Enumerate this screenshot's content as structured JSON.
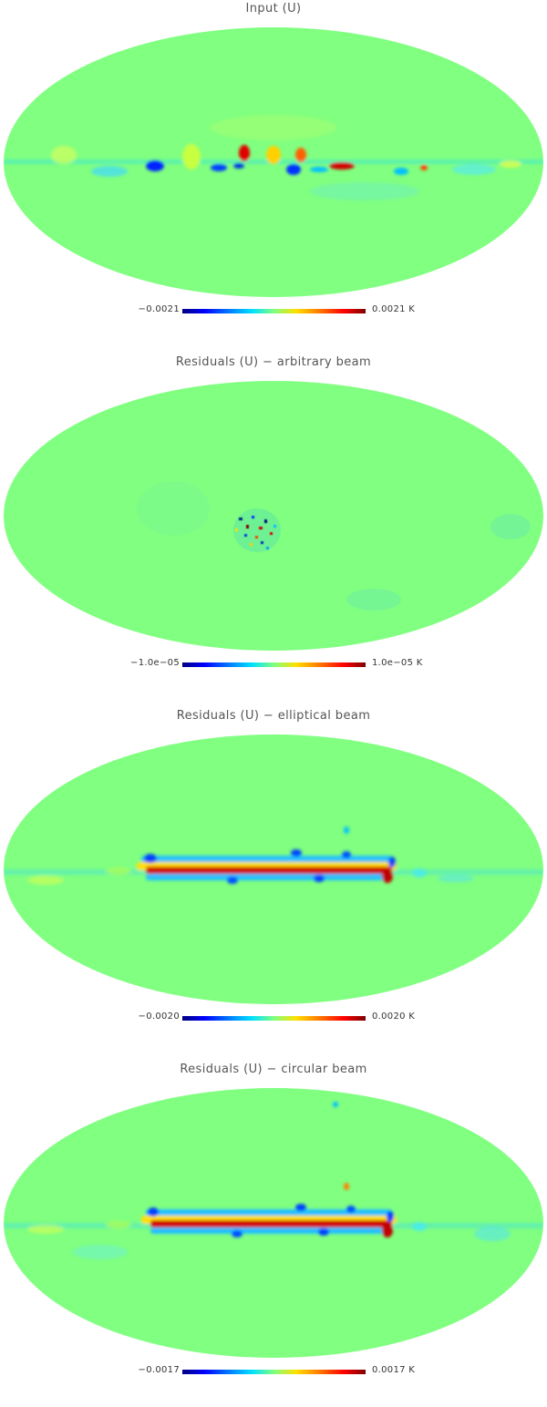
{
  "colors": {
    "background_green": "#80ff80",
    "cyan": "#00e0ff",
    "blue": "#0020ff",
    "yellow": "#ffe000",
    "red": "#e00000",
    "dark_red": "#800000"
  },
  "panels": [
    {
      "title": "Input (U)",
      "cb_min": "−0.0021",
      "cb_max": "0.0021 K"
    },
    {
      "title": "Residuals (U) − arbitrary beam",
      "cb_min": "−1.0e−05",
      "cb_max": "1.0e−05 K"
    },
    {
      "title": "Residuals (U) − elliptical beam",
      "cb_min": "−0.0020",
      "cb_max": "0.0020 K"
    },
    {
      "title": "Residuals (U) − circular beam",
      "cb_min": "−0.0017",
      "cb_max": "0.0017 K"
    }
  ]
}
